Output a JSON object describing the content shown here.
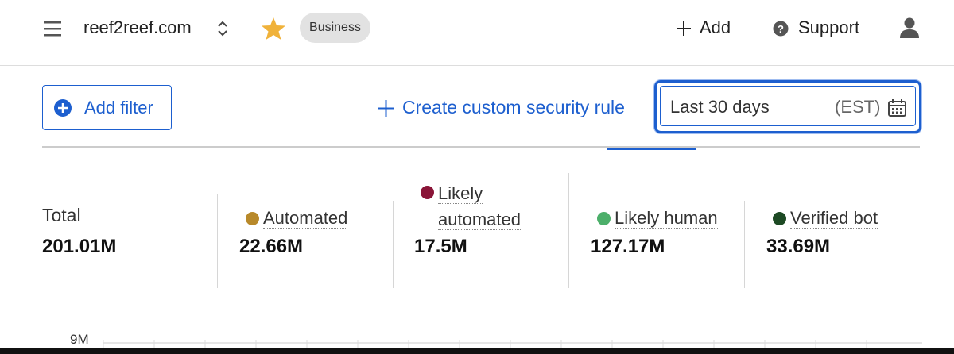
{
  "header": {
    "site": "reef2reef.com",
    "plan": "Business",
    "add": "Add",
    "support": "Support"
  },
  "toolbar": {
    "add_filter": "Add filter",
    "create_rule": "Create custom security rule",
    "date_range": "Last 30 days",
    "timezone": "(EST)"
  },
  "stats": [
    {
      "label": "Total",
      "value": "201.01M"
    },
    {
      "label": "Automated",
      "value": "22.66M",
      "color": "#b8892a"
    },
    {
      "label": "Likely automated",
      "value": "17.5M",
      "color": "#8a1538"
    },
    {
      "label": "Likely human",
      "value": "127.17M",
      "color": "#4caf6a"
    },
    {
      "label": "Verified bot",
      "value": "33.69M",
      "color": "#1d4a24"
    }
  ],
  "chart": {
    "ytick_label": "9M"
  }
}
